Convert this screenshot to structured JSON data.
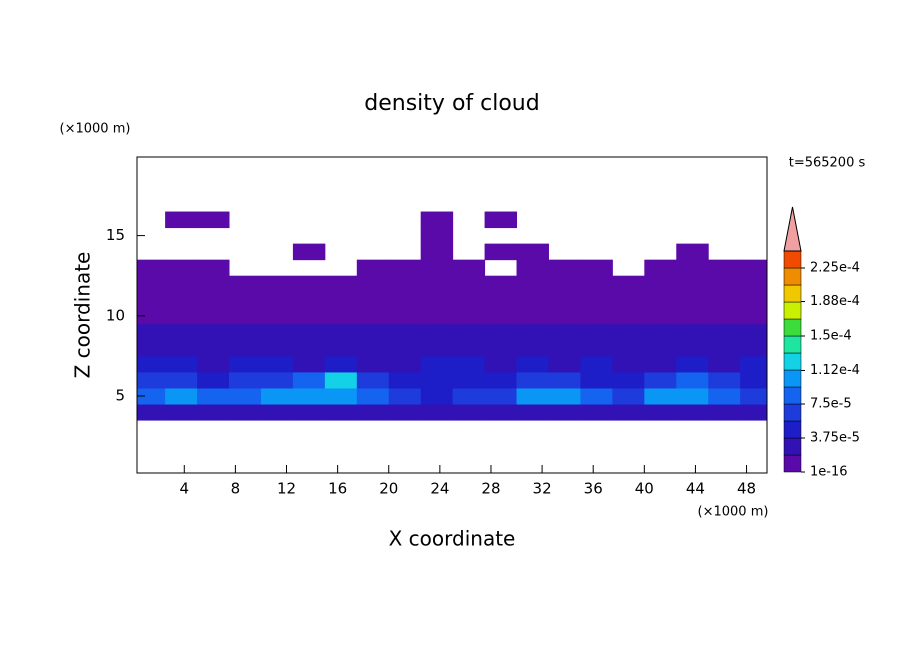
{
  "chart_data": {
    "type": "contour",
    "title": "density of cloud",
    "time_label": "t=565200 s",
    "x_label": "X coordinate",
    "x_unit": "(×1000 m)",
    "y_label": "Z coordinate",
    "y_unit": "(×1000 m)",
    "xlim": [
      0.3,
      49.6
    ],
    "xticks": [
      4,
      8,
      12,
      16,
      20,
      24,
      28,
      32,
      36,
      40,
      44,
      48
    ],
    "ylim": [
      0.2,
      19.9
    ],
    "yticks": [
      5,
      10,
      15
    ],
    "x_edges": [
      0,
      2.5,
      5,
      7.5,
      10,
      12.5,
      15,
      17.5,
      20,
      22.5,
      25,
      27.5,
      30,
      32.5,
      35,
      37.5,
      40,
      42.5,
      45,
      47.5,
      50
    ],
    "z_edges": [
      3.5,
      4.5,
      5.5,
      6.5,
      7.5,
      8.5,
      9.5,
      10.5,
      11.5,
      12.5,
      13.5,
      14.5,
      15.5,
      16.5
    ],
    "z": [
      [
        3e-05,
        3e-05,
        3e-05,
        3e-05,
        3e-05,
        3e-05,
        3e-05,
        3e-05,
        2e-05,
        2e-05,
        3e-05,
        3e-05,
        3e-05,
        3e-05,
        3e-05,
        2e-05,
        3e-05,
        3e-05,
        3e-05,
        3e-05
      ],
      [
        8e-05,
        0.0001,
        8e-05,
        9e-05,
        0.0001,
        0.0001,
        0.00011,
        8e-05,
        6e-05,
        5e-05,
        6e-05,
        7e-05,
        0.0001,
        0.0001,
        9e-05,
        6e-05,
        0.0001,
        0.00011,
        9e-05,
        7e-05
      ],
      [
        6e-05,
        7e-05,
        5e-05,
        6e-05,
        7e-05,
        8e-05,
        0.00013,
        6e-05,
        4e-05,
        4e-05,
        4e-05,
        5e-05,
        6e-05,
        6e-05,
        5e-05,
        4e-05,
        7e-05,
        8e-05,
        6e-05,
        5e-05
      ],
      [
        4e-05,
        4e-05,
        3e-05,
        4e-05,
        4e-05,
        3e-05,
        4e-05,
        3e-05,
        3e-05,
        5e-05,
        4e-05,
        3e-05,
        4e-05,
        3e-05,
        5e-05,
        3e-05,
        3e-05,
        4e-05,
        3e-05,
        4e-05
      ],
      [
        3e-05,
        3e-05,
        2.5e-05,
        3e-05,
        2.5e-05,
        2.5e-05,
        3e-05,
        2.5e-05,
        3e-05,
        3e-05,
        2.5e-05,
        2.5e-05,
        3e-05,
        2.5e-05,
        2.5e-05,
        3e-05,
        3e-05,
        2.5e-05,
        3e-05,
        3e-05
      ],
      [
        2.5e-05,
        2e-05,
        2e-05,
        2.5e-05,
        2e-05,
        2e-05,
        2e-05,
        2e-05,
        2.5e-05,
        2.5e-05,
        2e-05,
        2e-05,
        2e-05,
        2e-05,
        2.5e-05,
        2e-05,
        2e-05,
        2e-05,
        2.5e-05,
        2.5e-05
      ],
      [
        1.5e-05,
        1e-05,
        1e-05,
        1e-05,
        1e-05,
        1e-05,
        1.5e-05,
        1.5e-05,
        1e-05,
        1e-05,
        1e-05,
        1e-05,
        1e-05,
        1e-05,
        1e-05,
        1e-05,
        1e-05,
        1e-05,
        1e-05,
        1.5e-05
      ],
      [
        5e-06,
        5e-06,
        5e-06,
        5e-06,
        5e-06,
        5e-06,
        5e-06,
        5e-06,
        5e-06,
        5e-06,
        5e-06,
        5e-06,
        5e-06,
        5e-06,
        5e-06,
        5e-06,
        5e-06,
        5e-06,
        5e-06,
        5e-06
      ],
      [
        5e-06,
        5e-06,
        5e-06,
        5e-06,
        5e-06,
        5e-06,
        5e-06,
        5e-06,
        5e-06,
        5e-06,
        5e-06,
        5e-06,
        5e-06,
        5e-06,
        5e-06,
        5e-06,
        5e-06,
        5e-06,
        5e-06,
        5e-06
      ],
      [
        5e-06,
        5e-06,
        5e-06,
        null,
        null,
        null,
        null,
        5e-06,
        5e-06,
        5e-06,
        5e-06,
        null,
        5e-06,
        5e-06,
        5e-06,
        null,
        5e-06,
        5e-06,
        5e-06,
        5e-06
      ],
      [
        null,
        null,
        null,
        null,
        null,
        5e-06,
        null,
        null,
        null,
        5e-06,
        null,
        5e-06,
        5e-06,
        null,
        null,
        null,
        null,
        5e-06,
        null,
        null
      ],
      [
        null,
        null,
        null,
        null,
        null,
        null,
        null,
        null,
        null,
        5e-06,
        null,
        null,
        null,
        null,
        null,
        null,
        null,
        null,
        null,
        null
      ],
      [
        null,
        5e-06,
        5e-06,
        null,
        null,
        null,
        null,
        null,
        null,
        5e-06,
        null,
        5e-06,
        null,
        null,
        null,
        null,
        null,
        null,
        null,
        null
      ]
    ],
    "levels": [
      1e-16,
      1.875e-05,
      3.75e-05,
      5.625e-05,
      7.5e-05,
      9.375e-05,
      0.0001125,
      0.00013125,
      0.00015,
      0.00016875,
      0.0001875,
      0.00020625,
      0.000225
    ],
    "colors": [
      "#5a0aa8",
      "#3212b4",
      "#1e1ec8",
      "#1e3cdc",
      "#1464f0",
      "#0a96f5",
      "#14d2e6",
      "#1ee6a0",
      "#3cdc3c",
      "#c8f000",
      "#f0c800",
      "#f08c00",
      "#f04b00"
    ],
    "extend_color": "#f0a0a0",
    "clim": [
      1e-16,
      0.00024375
    ],
    "cticks": [
      {
        "value": 1e-16,
        "label": "1e-16"
      },
      {
        "value": 3.75e-05,
        "label": "3.75e-5"
      },
      {
        "value": 7.5e-05,
        "label": "7.5e-5"
      },
      {
        "value": 0.000112,
        "label": "1.12e-4"
      },
      {
        "value": 0.00015,
        "label": "1.5e-4"
      },
      {
        "value": 0.000188,
        "label": "1.88e-4"
      },
      {
        "value": 0.000225,
        "label": "2.25e-4"
      }
    ]
  }
}
